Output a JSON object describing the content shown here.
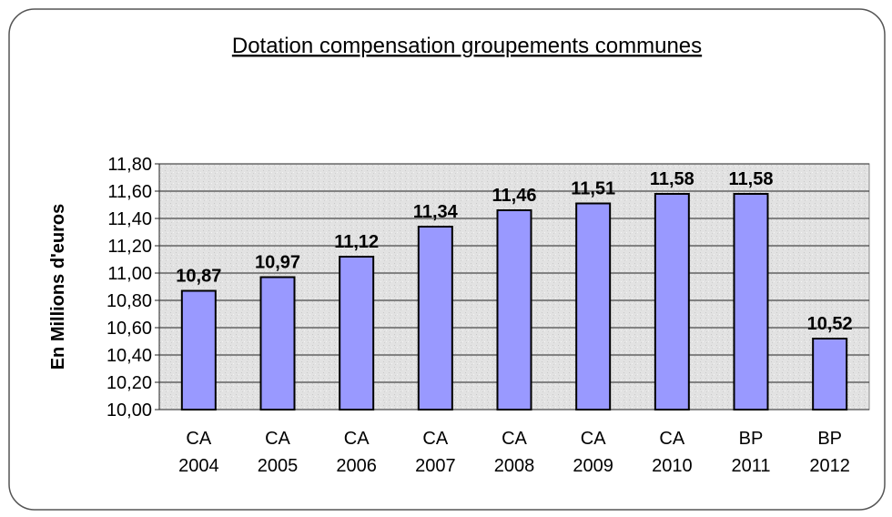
{
  "chart_data": {
    "type": "bar",
    "title": "Dotation compensation groupements communes",
    "y_label": "En Millions d'euros",
    "categories": [
      "CA 2004",
      "CA 2005",
      "CA 2006",
      "CA 2007",
      "CA 2008",
      "CA 2009",
      "CA 2010",
      "BP 2011",
      "BP 2012"
    ],
    "values": [
      10.87,
      10.97,
      11.12,
      11.34,
      11.46,
      11.51,
      11.58,
      11.58,
      10.52
    ],
    "value_labels": [
      "10,87",
      "10,97",
      "11,12",
      "11,34",
      "11,46",
      "11,51",
      "11,58",
      "11,58",
      "10,52"
    ],
    "color": "#9999ff",
    "ylim": [
      10,
      11.8
    ],
    "yticks": [
      {
        "value": 10,
        "label": "10,00"
      },
      {
        "value": 10.2,
        "label": "10,20"
      },
      {
        "value": 10.4,
        "label": "10,40"
      },
      {
        "value": 10.6,
        "label": "10,60"
      },
      {
        "value": 10.8,
        "label": "10,80"
      },
      {
        "value": 11,
        "label": "11,00"
      },
      {
        "value": 11.2,
        "label": "11,20"
      },
      {
        "value": 11.4,
        "label": "11,40"
      },
      {
        "value": 11.6,
        "label": "11,60"
      },
      {
        "value": 11.8,
        "label": "11,80"
      }
    ],
    "grid": true
  }
}
